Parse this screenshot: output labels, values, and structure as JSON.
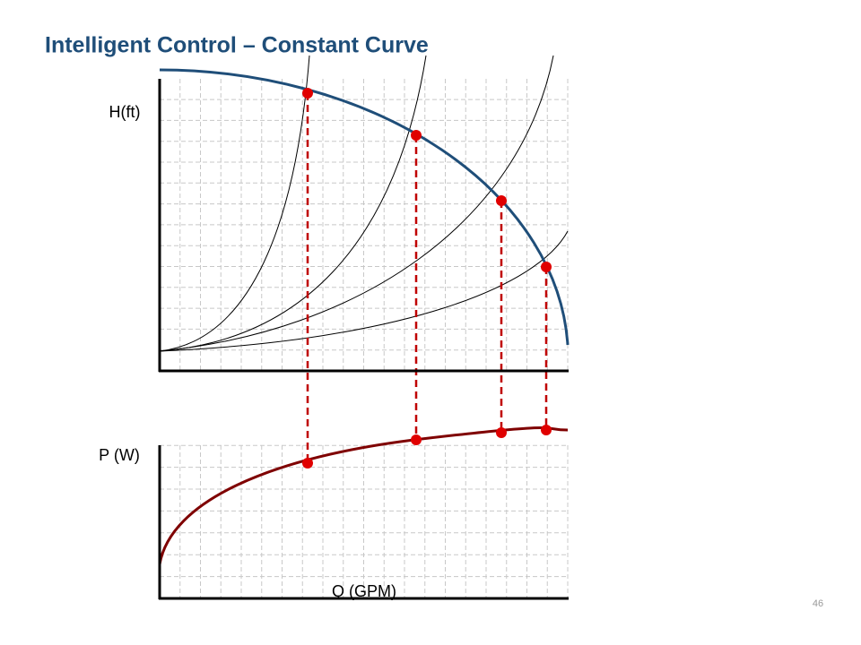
{
  "title": "Intelligent Control – Constant Curve",
  "head_axis_label": "H(ft)",
  "power_axis_label": "P (W)",
  "flow_axis_label": "Q (GPM)",
  "page_number": "46"
}
